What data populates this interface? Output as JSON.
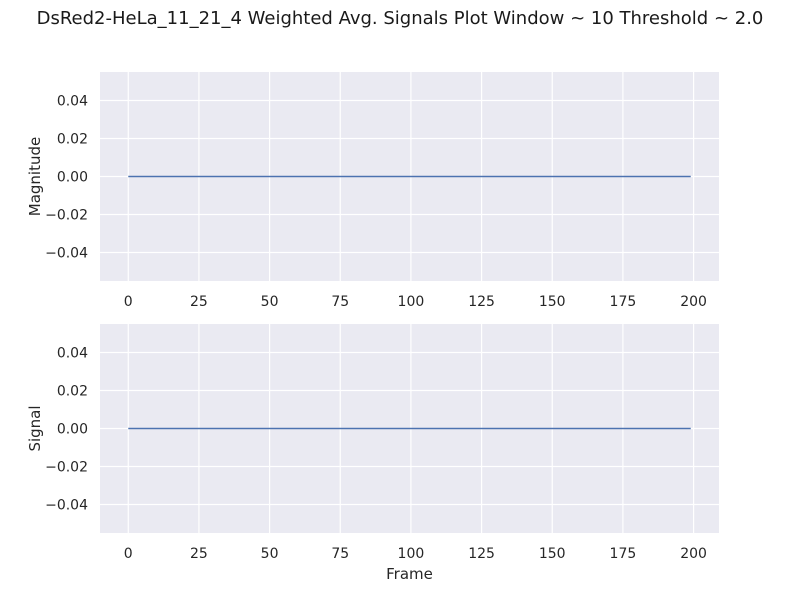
{
  "suptitle": "DsRed2-HeLa_11_21_4 Weighted Avg. Signals Plot Window ~ 10 Threshold ~ 2.0",
  "colors": {
    "background": "#eaeaf2",
    "grid": "#ffffff",
    "line": "#4c72b0"
  },
  "chart_data": [
    {
      "type": "line",
      "title": "",
      "xlabel": "",
      "ylabel": "Magnitude",
      "xlim": [
        -10,
        209
      ],
      "ylim": [
        -0.055,
        0.055
      ],
      "xticks": [
        0,
        25,
        50,
        75,
        100,
        125,
        150,
        175,
        200
      ],
      "xtick_labels": [
        "0",
        "25",
        "50",
        "75",
        "100",
        "125",
        "150",
        "175",
        "200"
      ],
      "yticks": [
        -0.04,
        -0.02,
        0.0,
        0.02,
        0.04
      ],
      "ytick_labels": [
        "−0.04",
        "−0.02",
        "0.00",
        "0.02",
        "0.04"
      ],
      "grid": true,
      "series": [
        {
          "x": [
            0,
            199
          ],
          "y": [
            0.0,
            0.0
          ]
        }
      ]
    },
    {
      "type": "line",
      "title": "",
      "xlabel": "Frame",
      "ylabel": "Signal",
      "xlim": [
        -10,
        209
      ],
      "ylim": [
        -0.055,
        0.055
      ],
      "xticks": [
        0,
        25,
        50,
        75,
        100,
        125,
        150,
        175,
        200
      ],
      "xtick_labels": [
        "0",
        "25",
        "50",
        "75",
        "100",
        "125",
        "150",
        "175",
        "200"
      ],
      "yticks": [
        -0.04,
        -0.02,
        0.0,
        0.02,
        0.04
      ],
      "ytick_labels": [
        "−0.04",
        "−0.02",
        "0.00",
        "0.02",
        "0.04"
      ],
      "grid": true,
      "series": [
        {
          "x": [
            0,
            199
          ],
          "y": [
            0.0,
            0.0
          ]
        }
      ]
    }
  ]
}
